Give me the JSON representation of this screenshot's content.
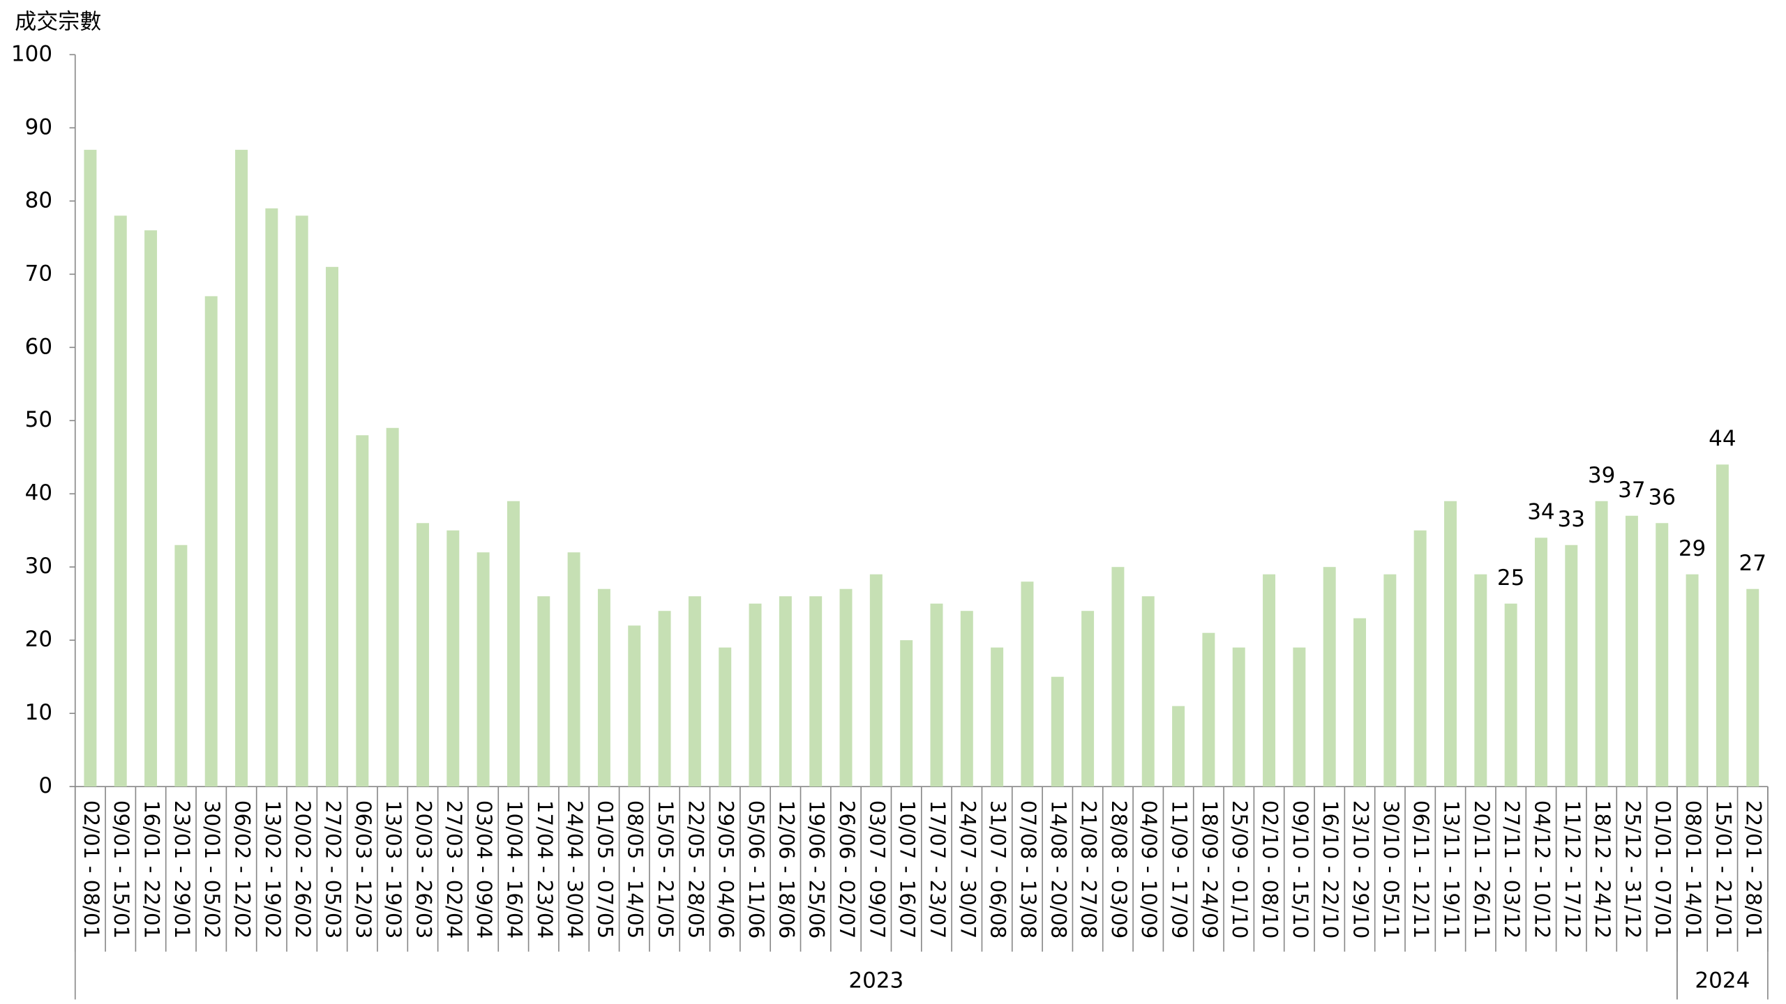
{
  "chart_data": {
    "type": "bar",
    "y_axis_label": "成交宗數",
    "categories": [
      "02/01 - 08/01",
      "09/01 - 15/01",
      "16/01 - 22/01",
      "23/01 - 29/01",
      "30/01 - 05/02",
      "06/02 - 12/02",
      "13/02 - 19/02",
      "20/02 - 26/02",
      "27/02 - 05/03",
      "06/03 - 12/03",
      "13/03 - 19/03",
      "20/03 - 26/03",
      "27/03 - 02/04",
      "03/04 - 09/04",
      "10/04 - 16/04",
      "17/04 - 23/04",
      "24/04 - 30/04",
      "01/05 - 07/05",
      "08/05 - 14/05",
      "15/05 - 21/05",
      "22/05 - 28/05",
      "29/05 - 04/06",
      "05/06 - 11/06",
      "12/06 - 18/06",
      "19/06 - 25/06",
      "26/06 - 02/07",
      "03/07 - 09/07",
      "10/07 - 16/07",
      "17/07 - 23/07",
      "24/07 - 30/07",
      "31/07 - 06/08",
      "07/08 - 13/08",
      "14/08 - 20/08",
      "21/08 - 27/08",
      "28/08 - 03/09",
      "04/09 - 10/09",
      "11/09 - 17/09",
      "18/09 - 24/09",
      "25/09 - 01/10",
      "02/10 - 08/10",
      "09/10 - 15/10",
      "16/10 - 22/10",
      "23/10 - 29/10",
      "30/10 - 05/11",
      "06/11 - 12/11",
      "13/11 - 19/11",
      "20/11 - 26/11",
      "27/11 - 03/12",
      "04/12 - 10/12",
      "11/12 - 17/12",
      "18/12 - 24/12",
      "25/12 - 31/12",
      "01/01 - 07/01",
      "08/01 - 14/01",
      "15/01 - 21/01",
      "22/01 - 28/01"
    ],
    "values": [
      87,
      78,
      76,
      33,
      67,
      87,
      79,
      78,
      71,
      48,
      49,
      36,
      35,
      32,
      39,
      26,
      32,
      27,
      22,
      24,
      26,
      19,
      25,
      26,
      26,
      27,
      29,
      20,
      25,
      24,
      19,
      28,
      15,
      24,
      30,
      26,
      11,
      21,
      19,
      29,
      19,
      30,
      23,
      29,
      35,
      39,
      29,
      25,
      34,
      33,
      39,
      37,
      36,
      29,
      44,
      27
    ],
    "value_labels": [
      null,
      null,
      null,
      null,
      null,
      null,
      null,
      null,
      null,
      null,
      null,
      null,
      null,
      null,
      null,
      null,
      null,
      null,
      null,
      null,
      null,
      null,
      null,
      null,
      null,
      null,
      null,
      null,
      null,
      null,
      null,
      null,
      null,
      null,
      null,
      null,
      null,
      null,
      null,
      null,
      null,
      null,
      null,
      null,
      null,
      null,
      null,
      "25",
      "34",
      "33",
      "39",
      "37",
      "36",
      "29",
      "44",
      "27"
    ],
    "groups": [
      {
        "label": "2023",
        "count": 53
      },
      {
        "label": "2024",
        "count": 3
      }
    ],
    "color": "#c6e0b4",
    "ylim": [
      0,
      100
    ],
    "yticks": [
      0,
      10,
      20,
      30,
      40,
      50,
      60,
      70,
      80,
      90,
      100
    ],
    "grid": false
  }
}
